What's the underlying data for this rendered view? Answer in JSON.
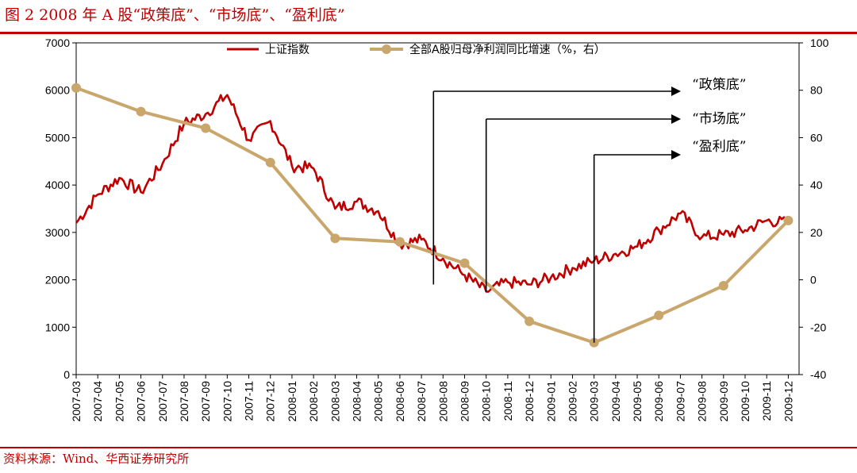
{
  "figure": {
    "title": "图 2 2008 年 A 股“政策底”、“市场底”、“盈利底”",
    "source": "资料来源：Wind、华西证券研究所"
  },
  "chart_data": {
    "type": "line",
    "title": "图 2 2008 年 A 股“政策底”、“市场底”、“盈利底”",
    "x_categories": [
      "2007-03",
      "2007-04",
      "2007-05",
      "2007-06",
      "2007-07",
      "2007-08",
      "2007-09",
      "2007-10",
      "2007-11",
      "2007-12",
      "2008-01",
      "2008-02",
      "2008-03",
      "2008-04",
      "2008-05",
      "2008-06",
      "2008-07",
      "2008-08",
      "2008-09",
      "2008-10",
      "2008-11",
      "2008-12",
      "2009-01",
      "2009-02",
      "2009-03",
      "2009-04",
      "2009-05",
      "2009-06",
      "2009-07",
      "2009-08",
      "2009-09",
      "2009-10",
      "2009-11",
      "2009-12"
    ],
    "y_left": {
      "range": [
        0,
        7000
      ],
      "ticks": [
        "0",
        "1000",
        "2000",
        "3000",
        "4000",
        "5000",
        "6000",
        "7000"
      ]
    },
    "y_right": {
      "range": [
        -40,
        100
      ],
      "ticks": [
        "-40",
        "-20",
        "0",
        "20",
        "40",
        "60",
        "80",
        "100"
      ]
    },
    "legend_position": "top",
    "grid": false,
    "series": [
      {
        "name": "上证指数",
        "axis": "left",
        "color": "#c00000",
        "x": [
          "2007-03",
          "2007-04",
          "2007-05",
          "2007-06",
          "2007-07",
          "2007-08",
          "2007-09",
          "2007-10",
          "2007-11",
          "2007-12",
          "2008-01",
          "2008-02",
          "2008-03",
          "2008-04",
          "2008-05",
          "2008-06",
          "2008-07",
          "2008-08",
          "2008-09",
          "2008-10",
          "2008-11",
          "2008-12",
          "2009-01",
          "2009-02",
          "2009-03",
          "2009-04",
          "2009-05",
          "2009-06",
          "2009-07",
          "2009-08",
          "2009-09",
          "2009-10",
          "2009-11",
          "2009-12"
        ],
        "values": [
          3200,
          3800,
          4150,
          3850,
          4450,
          5300,
          5500,
          5900,
          4950,
          5350,
          4400,
          4350,
          3500,
          3650,
          3450,
          2750,
          2850,
          2450,
          2100,
          1750,
          1950,
          1900,
          2050,
          2250,
          2400,
          2550,
          2700,
          3050,
          3400,
          2900,
          2950,
          3050,
          3250,
          3200
        ]
      },
      {
        "name": "全部A股归母净利润同比增速（%，右）",
        "axis": "right",
        "color": "#c9a66b",
        "x": [
          "2007-03",
          "2007-06",
          "2007-09",
          "2007-12",
          "2008-03",
          "2008-06",
          "2008-09",
          "2008-12",
          "2009-03",
          "2009-06",
          "2009-09",
          "2009-12"
        ],
        "values": [
          81,
          71,
          64,
          49.5,
          17.5,
          16,
          7,
          -17.5,
          -26.5,
          -15,
          -2.5,
          25
        ]
      }
    ],
    "annotations": [
      {
        "label": "“政策底”",
        "x": "2008-08",
        "color": "#000000"
      },
      {
        "label": "“市场底”",
        "x": "2008-10",
        "color": "#000000"
      },
      {
        "label": "“盈利底”",
        "x": "2009-03",
        "color": "#000000"
      }
    ]
  }
}
